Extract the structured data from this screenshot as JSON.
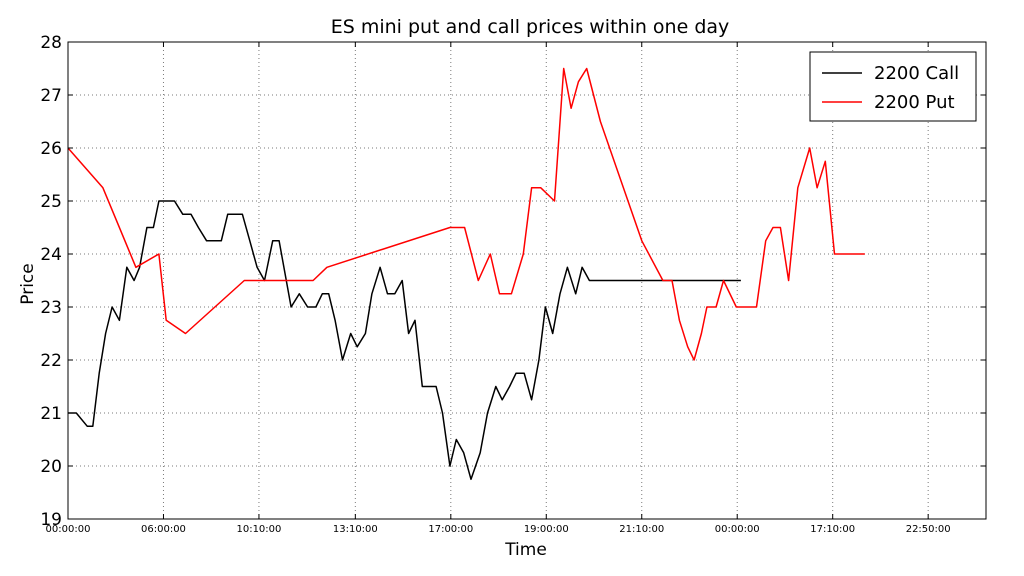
{
  "chart_data": {
    "type": "line",
    "title": "ES mini put and call prices within one day",
    "xlabel": "Time",
    "ylabel": "Price",
    "ylim": [
      19,
      28
    ],
    "xlim": [
      0,
      100
    ],
    "yticks": [
      "19",
      "20",
      "21",
      "22",
      "23",
      "24",
      "25",
      "26",
      "27",
      "28"
    ],
    "xtick_labels": [
      {
        "x": 0,
        "label": "00:00:00"
      },
      {
        "x": 10.4,
        "label": "06:00:00"
      },
      {
        "x": 20.8,
        "label": "10:10:00"
      },
      {
        "x": 31.3,
        "label": "13:10:00"
      },
      {
        "x": 41.7,
        "label": "17:00:00"
      },
      {
        "x": 52.1,
        "label": "19:00:00"
      },
      {
        "x": 62.5,
        "label": "21:10:00"
      },
      {
        "x": 72.9,
        "label": "00:00:00"
      },
      {
        "x": 83.3,
        "label": "17:10:00"
      },
      {
        "x": 93.7,
        "label": "22:50:00"
      }
    ],
    "grid": true,
    "legend_position": "top-right",
    "series": [
      {
        "name": "2200 Call",
        "color": "#000000",
        "x": [
          0,
          0.9,
          2.1,
          2.7,
          3.4,
          4.1,
          4.8,
          5.6,
          6.4,
          7.2,
          7.8,
          8.6,
          9.3,
          9.9,
          10.7,
          11.6,
          12.5,
          13.4,
          14.2,
          15.1,
          15.9,
          16.7,
          17.4,
          18.2,
          19.0,
          19.8,
          20.6,
          21.4,
          22.3,
          23.0,
          24.3,
          25.2,
          26.1,
          27.0,
          27.7,
          28.4,
          29.1,
          29.9,
          30.8,
          31.5,
          32.4,
          33.1,
          34.0,
          34.8,
          35.6,
          36.4,
          37.1,
          37.8,
          38.6,
          39.4,
          40.1,
          40.8,
          41.6,
          42.3,
          43.1,
          43.9,
          44.9,
          45.7,
          46.6,
          47.3,
          48.1,
          48.8,
          49.7,
          50.5,
          51.3,
          52.0,
          52.8,
          53.6,
          54.4,
          55.3,
          56.0,
          56.8,
          57.6,
          58.3,
          59.1,
          60.0,
          60.8,
          61.7,
          62.6,
          63.4,
          64.2,
          65.0,
          65.8,
          66.7,
          67.5,
          68.3,
          69.1,
          69.9,
          70.7,
          71.4,
          72.0,
          72.6,
          73.3
        ],
        "values": [
          21,
          21,
          20.75,
          20.75,
          21.75,
          22.5,
          23,
          22.75,
          23.75,
          23.5,
          23.75,
          24.5,
          24.5,
          25,
          25,
          25,
          24.75,
          24.75,
          24.5,
          24.25,
          24.25,
          24.25,
          24.75,
          24.75,
          24.75,
          24.25,
          23.75,
          23.5,
          24.25,
          24.25,
          23,
          23.25,
          23,
          23,
          23.25,
          23.25,
          22.75,
          22,
          22.5,
          22.25,
          22.5,
          23.25,
          23.75,
          23.25,
          23.25,
          23.5,
          22.5,
          22.75,
          21.5,
          21.5,
          21.5,
          21,
          20,
          20.5,
          20.25,
          19.75,
          20.25,
          21,
          21.5,
          21.25,
          21.5,
          21.75,
          21.75,
          21.25,
          22,
          23,
          22.5,
          23.25,
          23.75,
          23.25,
          23.75,
          23.5,
          23.5,
          23.5,
          23.5,
          23.5,
          23.5,
          23.5,
          23.5,
          23.5,
          23.5,
          23.5,
          23.5,
          23.5,
          23.5,
          23.5,
          23.5,
          23.5,
          23.5,
          23.5,
          23.5,
          23.5,
          23.5
        ]
      },
      {
        "name": "2200 Put",
        "color": "#ff0000",
        "x": [
          0,
          3.8,
          7.4,
          9.9,
          10.7,
          12.8,
          19.2,
          26.7,
          28.2,
          41.6,
          43.2,
          44.7,
          46.0,
          47.0,
          48.3,
          49.6,
          50.5,
          51.5,
          53.0,
          54.0,
          54.8,
          55.6,
          56.5,
          58.0,
          60.5,
          62.5,
          64.8,
          65.8,
          66.6,
          67.5,
          68.2,
          69.0,
          69.6,
          70.6,
          71.4,
          72.8,
          75.0,
          76.0,
          76.8,
          77.6,
          78.5,
          79.5,
          80.8,
          81.6,
          82.5,
          83.5,
          84.4,
          85.2,
          86.0,
          86.8
        ],
        "values": [
          26,
          25.25,
          23.75,
          24,
          22.75,
          22.5,
          23.5,
          23.5,
          23.75,
          24.5,
          24.5,
          23.5,
          24,
          23.25,
          23.25,
          24,
          25.25,
          25.25,
          25,
          27.5,
          26.75,
          27.25,
          27.5,
          26.5,
          25.25,
          24.25,
          23.5,
          23.5,
          22.75,
          22.25,
          22,
          22.5,
          23,
          23,
          23.5,
          23,
          23,
          24.25,
          24.5,
          24.5,
          23.5,
          25.25,
          26,
          25.25,
          25.75,
          24,
          24,
          24,
          24,
          24
        ]
      }
    ]
  }
}
